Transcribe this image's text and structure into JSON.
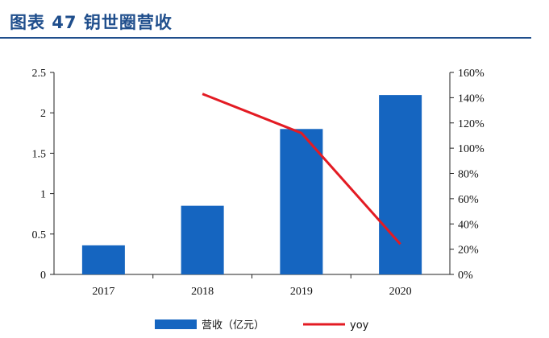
{
  "header": {
    "title": "图表 47   钥世圈营收"
  },
  "chart_data": {
    "type": "bar",
    "categories": [
      "2017",
      "2018",
      "2019",
      "2020"
    ],
    "series": [
      {
        "name": "营收（亿元）",
        "kind": "bar",
        "axis": "left",
        "color": "#1565c0",
        "values": [
          0.36,
          0.85,
          1.8,
          2.22
        ]
      },
      {
        "name": "yoy",
        "kind": "line",
        "axis": "right",
        "color": "#e31b23",
        "values": [
          null,
          1.43,
          1.12,
          0.24
        ]
      }
    ],
    "y_left": {
      "lim": [
        0,
        2.5
      ],
      "ticks": [
        "0",
        "0.5",
        "1",
        "1.5",
        "2",
        "2.5"
      ]
    },
    "y_right": {
      "lim": [
        0,
        1.6
      ],
      "ticks": [
        "0%",
        "20%",
        "40%",
        "60%",
        "80%",
        "100%",
        "120%",
        "140%",
        "160%"
      ]
    },
    "grid": false,
    "legend_position": "bottom"
  }
}
